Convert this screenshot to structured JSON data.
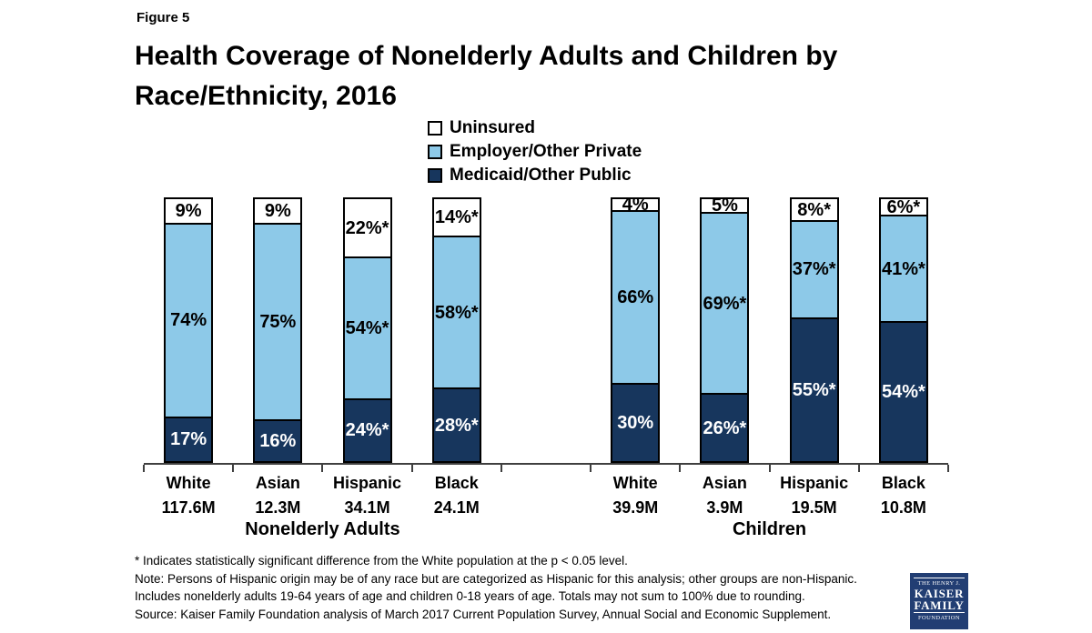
{
  "figure_label": "Figure 5",
  "title_lines": [
    "Health Coverage of Nonelderly Adults and Children by",
    "Race/Ethnicity, 2016"
  ],
  "colors": {
    "uninsured": "#FFFFFF",
    "private": "#8DC9E8",
    "public": "#17365D",
    "bar_border": "#000000",
    "axis": "#3F3F3F",
    "label_dark": "#000000",
    "label_light": "#FFFFFF",
    "logo_navy": "#223E73"
  },
  "legend": [
    {
      "key": "uninsured",
      "label": "Uninsured"
    },
    {
      "key": "private",
      "label": "Employer/Other Private"
    },
    {
      "key": "public",
      "label": "Medicaid/Other Public"
    }
  ],
  "chart_data": {
    "type": "bar",
    "stacked": true,
    "units": "percent",
    "ylim": [
      0,
      100
    ],
    "grid": false,
    "legend_position": "top-center",
    "series_order_top_to_bottom": [
      "Uninsured",
      "Employer/Other Private",
      "Medicaid/Other Public"
    ],
    "groups": [
      {
        "label": "Nonelderly Adults",
        "bars": [
          {
            "category": "White",
            "population": "117.6M",
            "segments": [
              {
                "key": "uninsured",
                "name": "Uninsured",
                "value": 9,
                "label": "9%"
              },
              {
                "key": "private",
                "name": "Employer/Other Private",
                "value": 74,
                "label": "74%"
              },
              {
                "key": "public",
                "name": "Medicaid/Other Public",
                "value": 17,
                "label": "17%"
              }
            ]
          },
          {
            "category": "Asian",
            "population": "12.3M",
            "segments": [
              {
                "key": "uninsured",
                "name": "Uninsured",
                "value": 9,
                "label": "9%"
              },
              {
                "key": "private",
                "name": "Employer/Other Private",
                "value": 75,
                "label": "75%"
              },
              {
                "key": "public",
                "name": "Medicaid/Other Public",
                "value": 16,
                "label": "16%"
              }
            ]
          },
          {
            "category": "Hispanic",
            "population": "34.1M",
            "segments": [
              {
                "key": "uninsured",
                "name": "Uninsured",
                "value": 22,
                "label": "22%*"
              },
              {
                "key": "private",
                "name": "Employer/Other Private",
                "value": 54,
                "label": "54%*"
              },
              {
                "key": "public",
                "name": "Medicaid/Other Public",
                "value": 24,
                "label": "24%*"
              }
            ]
          },
          {
            "category": "Black",
            "population": "24.1M",
            "segments": [
              {
                "key": "uninsured",
                "name": "Uninsured",
                "value": 14,
                "label": "14%*"
              },
              {
                "key": "private",
                "name": "Employer/Other Private",
                "value": 58,
                "label": "58%*"
              },
              {
                "key": "public",
                "name": "Medicaid/Other Public",
                "value": 28,
                "label": "28%*"
              }
            ]
          }
        ]
      },
      {
        "label": "Children",
        "bars": [
          {
            "category": "White",
            "population": "39.9M",
            "segments": [
              {
                "key": "uninsured",
                "name": "Uninsured",
                "value": 4,
                "label": "4%"
              },
              {
                "key": "private",
                "name": "Employer/Other Private",
                "value": 66,
                "label": "66%"
              },
              {
                "key": "public",
                "name": "Medicaid/Other Public",
                "value": 30,
                "label": "30%"
              }
            ]
          },
          {
            "category": "Asian",
            "population": "3.9M",
            "segments": [
              {
                "key": "uninsured",
                "name": "Uninsured",
                "value": 5,
                "label": "5%"
              },
              {
                "key": "private",
                "name": "Employer/Other Private",
                "value": 69,
                "label": "69%*"
              },
              {
                "key": "public",
                "name": "Medicaid/Other Public",
                "value": 26,
                "label": "26%*"
              }
            ]
          },
          {
            "category": "Hispanic",
            "population": "19.5M",
            "segments": [
              {
                "key": "uninsured",
                "name": "Uninsured",
                "value": 8,
                "label": "8%*"
              },
              {
                "key": "private",
                "name": "Employer/Other Private",
                "value": 37,
                "label": "37%*"
              },
              {
                "key": "public",
                "name": "Medicaid/Other Public",
                "value": 55,
                "label": "55%*"
              }
            ]
          },
          {
            "category": "Black",
            "population": "10.8M",
            "segments": [
              {
                "key": "uninsured",
                "name": "Uninsured",
                "value": 6,
                "label": "6%*"
              },
              {
                "key": "private",
                "name": "Employer/Other Private",
                "value": 41,
                "label": "41%*"
              },
              {
                "key": "public",
                "name": "Medicaid/Other Public",
                "value": 54,
                "label": "54%*"
              }
            ]
          }
        ]
      }
    ]
  },
  "footnotes": {
    "significance": "* Indicates statistically significant difference from the White population at the p < 0.05 level.",
    "note_line1": "Note: Persons of Hispanic origin may be of any race but are categorized as Hispanic for this analysis; other groups are non-Hispanic.",
    "note_line2": "Includes nonelderly adults 19-64 years of age and children 0-18 years of age. Totals may not sum to 100% due to rounding.",
    "source": "Source: Kaiser Family Foundation analysis of March 2017 Current Population Survey, Annual Social and Economic Supplement."
  },
  "logo": {
    "line1": "THE HENRY J.",
    "line2": "KAISER",
    "line3": "FAMILY",
    "line4": "FOUNDATION"
  }
}
